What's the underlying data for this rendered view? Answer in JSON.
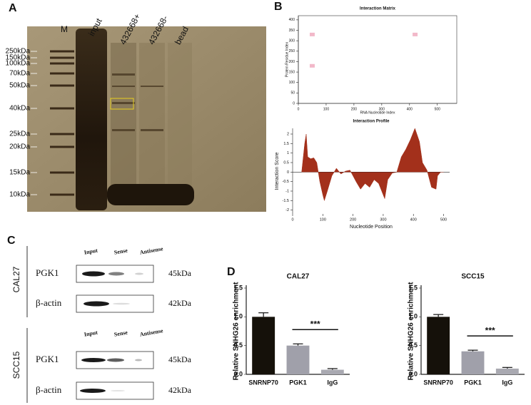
{
  "panel_labels": [
    "A",
    "B",
    "C",
    "D"
  ],
  "gel": {
    "lanes": [
      "M",
      "input",
      "432668+",
      "432668-",
      "bead"
    ],
    "markers": [
      "250kDa",
      "150kDa",
      "100kDa",
      "70kDa",
      "50kDa",
      "40kDa",
      "25kDa",
      "20kDa",
      "15kDa",
      "10kDa"
    ]
  },
  "blot": {
    "columns": [
      "Input",
      "Sense",
      "Antisense"
    ],
    "groups": [
      {
        "cell_line": "CAL27",
        "rows": [
          {
            "protein": "PGK1",
            "size": "45kDa"
          },
          {
            "protein": "β-actin",
            "size": "42kDa"
          }
        ]
      },
      {
        "cell_line": "SCC15",
        "rows": [
          {
            "protein": "PGK1",
            "size": "45kDa"
          },
          {
            "protein": "β-actin",
            "size": "42kDa"
          }
        ]
      }
    ]
  },
  "chart_data": [
    {
      "type": "scatter",
      "title": "Interaction Matrix",
      "xlabel": "RNA Nucleotide Index",
      "ylabel": "Protein Residue Index",
      "x": [
        50,
        420,
        50
      ],
      "values": [
        330,
        330,
        180
      ],
      "color": "#f2b8c9",
      "xlim": [
        0,
        570
      ],
      "ylim": [
        0,
        420
      ],
      "xticks": [
        0,
        100,
        200,
        300,
        400,
        500
      ],
      "yticks": [
        0,
        50,
        100,
        150,
        200,
        250,
        300,
        350,
        400
      ]
    },
    {
      "type": "area",
      "title": "Interaction Profile",
      "xlabel": "Nucleotide Position",
      "ylabel": "Interaction Score",
      "x": [
        30,
        40,
        45,
        50,
        60,
        70,
        80,
        90,
        100,
        105,
        115,
        130,
        145,
        160,
        175,
        190,
        210,
        225,
        240,
        255,
        270,
        285,
        300,
        305,
        315,
        330,
        345,
        360,
        375,
        390,
        405,
        420,
        430,
        445,
        460,
        475,
        480,
        490,
        500
      ],
      "values": [
        0,
        1.5,
        2.0,
        0.8,
        0.7,
        0.75,
        0.5,
        -0.5,
        -1.2,
        -1.5,
        -1.0,
        -0.2,
        0.2,
        -0.1,
        0.05,
        0.1,
        -0.5,
        -0.9,
        -0.6,
        -0.8,
        -0.4,
        -0.6,
        -1.2,
        -1.4,
        -0.4,
        -0.05,
        0,
        0.8,
        1.2,
        1.7,
        2.3,
        1.6,
        0.5,
        0.1,
        -0.8,
        -0.9,
        -0.2,
        0,
        0
      ],
      "color": "#a3301b",
      "xlim": [
        0,
        520
      ],
      "ylim": [
        -2.2,
        2.3
      ],
      "xticks": [
        0,
        100,
        200,
        300,
        400,
        500
      ],
      "yticks": [
        2,
        1.5,
        1,
        0.5,
        0,
        -0.5,
        -1,
        -1.5,
        -2
      ]
    },
    {
      "type": "bar",
      "title": "CAL27",
      "ylabel": "Relative SNHG26 enrichment",
      "categories": [
        "SNRNP70",
        "PGK1",
        "IgG"
      ],
      "values": [
        1.0,
        0.5,
        0.08
      ],
      "errors": [
        0.07,
        0.03,
        0.02
      ],
      "colors": [
        "#15110a",
        "#a0a0aa",
        "#a9a9b1"
      ],
      "annotation": "***",
      "ylim": [
        0,
        1.5
      ],
      "yticks": [
        {
          "value": 0,
          "label": "0.0"
        },
        0.5,
        {
          "value": 1,
          "label": "1.0"
        },
        1.5
      ]
    },
    {
      "type": "bar",
      "title": "SCC15",
      "ylabel": "Relative SNHG26 enrichment",
      "categories": [
        "SNRNP70",
        "PGK1",
        "IgG"
      ],
      "values": [
        1.0,
        0.4,
        0.1
      ],
      "errors": [
        0.04,
        0.02,
        0.02
      ],
      "colors": [
        "#15110a",
        "#a0a0aa",
        "#a9a9b1"
      ],
      "annotation": "***",
      "ylim": [
        0,
        1.5
      ],
      "yticks": [
        {
          "value": 0,
          "label": "0.0"
        },
        0.5,
        {
          "value": 1,
          "label": "1.0"
        },
        1.5
      ]
    }
  ]
}
